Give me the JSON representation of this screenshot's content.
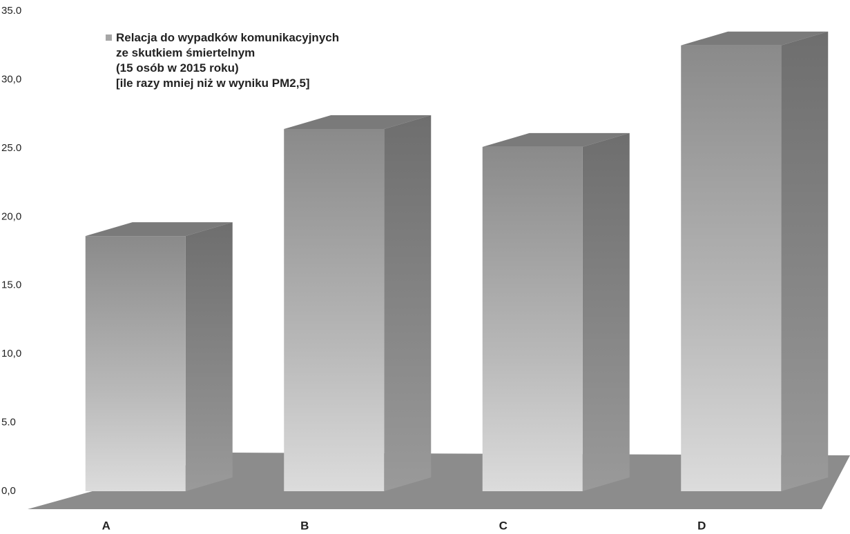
{
  "chart_data": {
    "type": "bar3d",
    "categories": [
      "A",
      "B",
      "C",
      "D"
    ],
    "series": [
      {
        "name": "Relacja do wypadków komunikacyjnych\nze skutkiem śmiertelnym\n(15 osób w 2015 roku)\n[ile razy mniej niż w wyniku PM2,5]",
        "color": "#a6a6a6",
        "values": [
          18.6,
          26.4,
          25.1,
          32.5
        ]
      }
    ],
    "ylim": [
      0,
      35
    ],
    "yticks": [
      {
        "value": 0,
        "label": "0,0"
      },
      {
        "value": 5,
        "label": "5.0"
      },
      {
        "value": 10,
        "label": "10,0"
      },
      {
        "value": 15,
        "label": "15.0"
      },
      {
        "value": 20,
        "label": "20,0"
      },
      {
        "value": 25,
        "label": "25.0"
      },
      {
        "value": 30,
        "label": "30,0"
      },
      {
        "value": 35,
        "label": "35.0"
      }
    ],
    "legend": "top-left"
  }
}
